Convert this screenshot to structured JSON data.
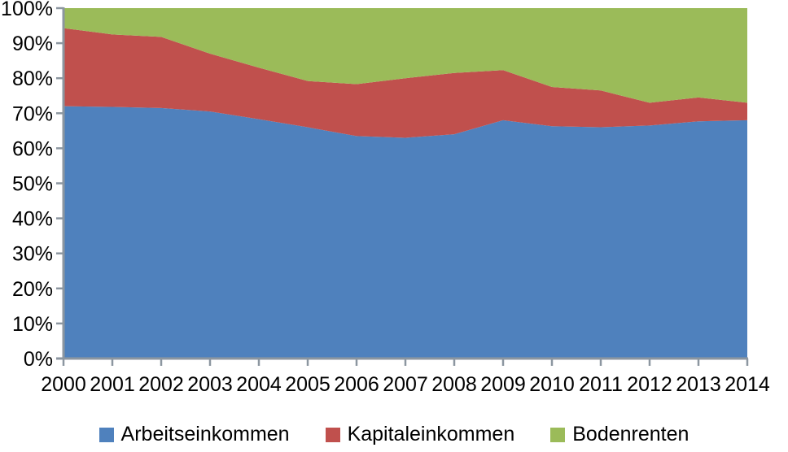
{
  "chart_data": {
    "type": "area",
    "stacking": "percent",
    "title": "",
    "xlabel": "",
    "ylabel": "",
    "grid": false,
    "legend_position": "bottom",
    "categories": [
      "2000",
      "2001",
      "2002",
      "2003",
      "2004",
      "2005",
      "2006",
      "2007",
      "2008",
      "2009",
      "2010",
      "2011",
      "2012",
      "2013",
      "2014"
    ],
    "series": [
      {
        "name": "Arbeitseinkommen",
        "color": "#4F81BD",
        "values": [
          72.0,
          71.8,
          71.5,
          70.5,
          68.3,
          66.0,
          63.5,
          63.0,
          64.0,
          68.0,
          66.3,
          66.0,
          66.5,
          67.7,
          68.0
        ]
      },
      {
        "name": "Kapitaleinkommen",
        "color": "#C0504D",
        "values": [
          22.3,
          20.7,
          20.3,
          16.5,
          14.7,
          13.2,
          14.8,
          17.0,
          17.5,
          14.3,
          11.2,
          10.5,
          6.5,
          6.8,
          5.0
        ]
      },
      {
        "name": "Bodenrenten",
        "color": "#9BBB59",
        "values": [
          5.7,
          7.5,
          8.2,
          13.0,
          17.0,
          20.8,
          21.7,
          20.0,
          18.5,
          17.7,
          22.5,
          23.5,
          27.0,
          25.5,
          27.0
        ]
      }
    ],
    "y_axis": {
      "min": 0,
      "max": 100,
      "tick_labels": [
        "0%",
        "10%",
        "20%",
        "30%",
        "40%",
        "50%",
        "60%",
        "70%",
        "80%",
        "90%",
        "100%"
      ]
    }
  },
  "colors": {
    "background": "#FFFFFF",
    "axis": "#8C96A0",
    "text": "#000000"
  }
}
